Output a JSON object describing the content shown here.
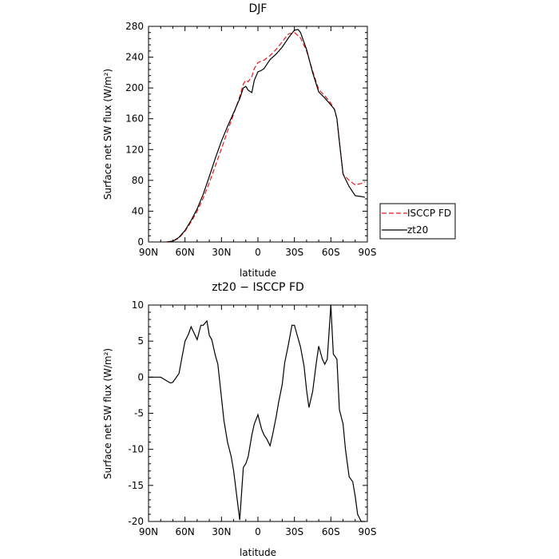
{
  "chart_data": [
    {
      "type": "line",
      "title": "DJF",
      "xlabel": "latitude",
      "ylabel": "Surface net SW flux (W/m²)",
      "xlim": [
        -90,
        90
      ],
      "ylim": [
        0,
        280
      ],
      "x_ticks": [
        -90,
        -60,
        -30,
        0,
        30,
        60,
        90
      ],
      "x_tick_labels": [
        "90N",
        "60N",
        "30N",
        "0",
        "30S",
        "60S",
        "90S"
      ],
      "y_ticks": [
        0,
        40,
        80,
        120,
        160,
        200,
        240,
        280
      ],
      "legend_position": "right",
      "series": [
        {
          "name": "ISCCP FD",
          "color": "#e41a1c",
          "dash": "dashed",
          "x": [
            -75,
            -70,
            -65,
            -60,
            -55,
            -50,
            -45,
            -40,
            -35,
            -30,
            -25,
            -20,
            -15,
            -12,
            -10,
            -8,
            -5,
            -3,
            0,
            3,
            5,
            10,
            15,
            20,
            25,
            30,
            35,
            40,
            45,
            50,
            55,
            60,
            63,
            65,
            67,
            70,
            75,
            80,
            85,
            88
          ],
          "y": [
            0,
            1,
            5,
            14,
            26,
            40,
            57,
            77,
            99,
            121,
            144,
            166,
            189,
            205,
            210,
            208,
            215,
            225,
            233,
            235,
            236,
            242,
            250,
            260,
            270,
            272,
            265,
            248,
            222,
            198,
            190,
            180,
            172,
            160,
            130,
            88,
            80,
            74,
            76,
            78
          ]
        },
        {
          "name": "zt20",
          "color": "#000000",
          "dash": "solid",
          "x": [
            -75,
            -70,
            -65,
            -60,
            -55,
            -50,
            -45,
            -40,
            -35,
            -30,
            -25,
            -20,
            -15,
            -12,
            -10,
            -8,
            -5,
            -3,
            0,
            3,
            5,
            10,
            15,
            20,
            25,
            30,
            33,
            35,
            40,
            45,
            50,
            55,
            60,
            63,
            65,
            67,
            70,
            75,
            80,
            85,
            88
          ],
          "y": [
            0,
            1,
            6,
            15,
            28,
            43,
            62,
            85,
            109,
            131,
            150,
            168,
            186,
            200,
            202,
            197,
            194,
            210,
            221,
            223,
            225,
            237,
            244,
            253,
            265,
            275,
            276,
            272,
            250,
            220,
            195,
            187,
            178,
            172,
            160,
            130,
            88,
            72,
            60,
            59,
            58
          ]
        }
      ]
    },
    {
      "type": "line",
      "title": "zt20 − ISCCP FD",
      "xlabel": "latitude",
      "ylabel": "Surface net SW flux (W/m²)",
      "xlim": [
        -90,
        90
      ],
      "ylim": [
        -20,
        10
      ],
      "x_ticks": [
        -90,
        -60,
        -30,
        0,
        30,
        60,
        90
      ],
      "x_tick_labels": [
        "90N",
        "60N",
        "30N",
        "0",
        "30S",
        "60S",
        "90S"
      ],
      "y_ticks": [
        -20,
        -15,
        -10,
        -5,
        0,
        5,
        10
      ],
      "series": [
        {
          "color": "#000000",
          "dash": "solid",
          "x": [
            -90,
            -80,
            -75,
            -72,
            -70,
            -65,
            -60,
            -57,
            -55,
            -50,
            -47,
            -45,
            -42,
            -40,
            -38,
            -35,
            -33,
            -30,
            -28,
            -25,
            -22,
            -20,
            -15,
            -12,
            -10,
            -8,
            -5,
            -3,
            0,
            3,
            5,
            7,
            10,
            12,
            15,
            17,
            20,
            22,
            25,
            28,
            30,
            32,
            35,
            38,
            40,
            42,
            45,
            48,
            50,
            53,
            55,
            57,
            60,
            62,
            65,
            67,
            70,
            72,
            75,
            78,
            80,
            82,
            85,
            88
          ],
          "y": [
            0,
            0,
            -0.5,
            -0.8,
            -0.7,
            0.5,
            5,
            6,
            7,
            5.2,
            7.2,
            7.2,
            7.8,
            5.8,
            5.2,
            3,
            1.8,
            -2.8,
            -6,
            -9,
            -11,
            -13,
            -19.8,
            -12.5,
            -12,
            -11,
            -8,
            -6.5,
            -5.2,
            -7.2,
            -8,
            -8.5,
            -9.5,
            -8,
            -5.5,
            -3.5,
            -1,
            2,
            4.5,
            7.2,
            7.2,
            6,
            4.2,
            1.5,
            -1.8,
            -4.2,
            -2,
            2,
            4.3,
            2.5,
            1.8,
            2.5,
            10,
            3.2,
            2.5,
            -4.5,
            -6.5,
            -10,
            -13.8,
            -14.5,
            -16.5,
            -19,
            -20,
            -20
          ]
        }
      ]
    }
  ]
}
